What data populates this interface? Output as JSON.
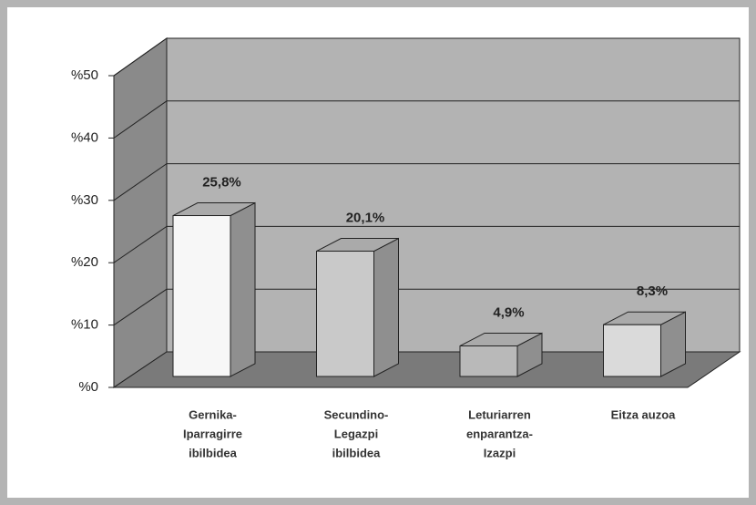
{
  "chart_data": {
    "type": "bar3d",
    "categories": [
      [
        "Gernika-",
        "Iparragirre",
        "ibilbidea"
      ],
      [
        "Secundino-",
        "Legazpi",
        "ibilbidea"
      ],
      [
        "Leturiarren",
        "enparantza-",
        "Izazpi"
      ],
      [
        "Eitza auzoa"
      ]
    ],
    "values": [
      25.8,
      20.1,
      4.9,
      8.3
    ],
    "value_labels": [
      "25,8%",
      "20,1%",
      "4,9%",
      "8,3%"
    ],
    "colors": [
      "#f7f7f7",
      "#c9c9c9",
      "#b9b9b9",
      "#dadada"
    ],
    "ylim": [
      0,
      50
    ],
    "yticks": [
      {
        "value": 0,
        "label": "%0"
      },
      {
        "value": 10,
        "label": "%10"
      },
      {
        "value": 20,
        "label": "%20"
      },
      {
        "value": 30,
        "label": "%30"
      },
      {
        "value": 40,
        "label": "%40"
      },
      {
        "value": 50,
        "label": "%50"
      }
    ],
    "grid": true
  }
}
